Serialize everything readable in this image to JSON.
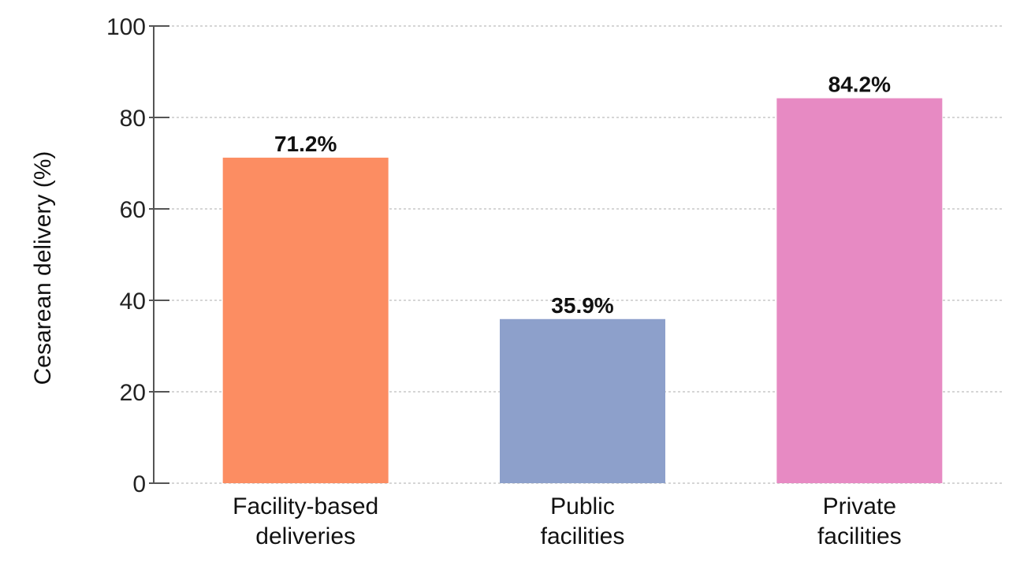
{
  "chart_data": {
    "type": "bar",
    "title": "",
    "xlabel": "",
    "ylabel": "Cesarean delivery (%)",
    "ylim": [
      0,
      100
    ],
    "yticks": [
      0,
      20,
      40,
      60,
      80,
      100
    ],
    "grid": true,
    "categories": [
      [
        "Facility-based",
        "deliveries"
      ],
      [
        "Public",
        "facilities"
      ],
      [
        "Private",
        "facilities"
      ]
    ],
    "values": [
      71.2,
      35.9,
      84.2
    ],
    "data_labels": [
      "71.2%",
      "35.9%",
      "84.2%"
    ],
    "colors": [
      "#fc8d62",
      "#8da0cb",
      "#e78ac3"
    ]
  }
}
